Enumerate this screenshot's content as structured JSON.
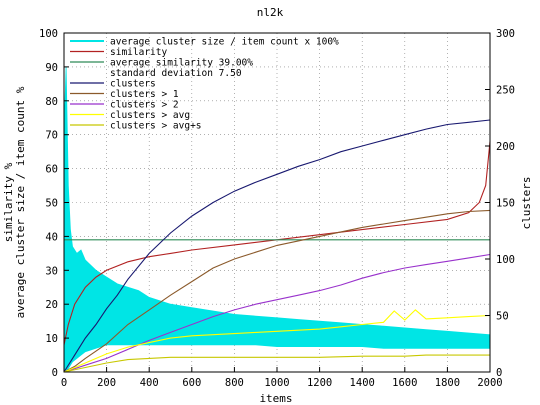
{
  "chart_data": {
    "type": "line",
    "title": "nl2k",
    "xlabel": "items",
    "ylabel_left": "similarity %\naverage cluster size / item count %",
    "ylabel_right": "clusters",
    "xlim": [
      0,
      2000
    ],
    "ylim_left": [
      0,
      100
    ],
    "ylim_right": [
      0,
      300
    ],
    "x_ticks": [
      0,
      200,
      400,
      600,
      800,
      1000,
      1200,
      1400,
      1600,
      1800,
      2000
    ],
    "y_ticks_left": [
      0,
      10,
      20,
      30,
      40,
      50,
      60,
      70,
      80,
      90,
      100
    ],
    "y_ticks_right": [
      0,
      50,
      100,
      150,
      200,
      250,
      300
    ],
    "grid": true,
    "legend_position": "top-left",
    "series": [
      {
        "name": "average cluster size / item count x 100%",
        "axis": "left",
        "color": "#00e5e5",
        "style": "area",
        "x": [
          0,
          10,
          20,
          30,
          40,
          60,
          80,
          100,
          150,
          200,
          250,
          300,
          350,
          400,
          500,
          600,
          700,
          800,
          900,
          1000,
          1100,
          1200,
          1300,
          1400,
          1500,
          1600,
          1700,
          1800,
          1900,
          2000
        ],
        "upper": [
          70,
          90,
          55,
          42,
          37,
          35,
          36,
          33,
          30,
          28,
          26,
          25,
          24,
          22,
          20,
          19,
          18,
          17,
          16.5,
          16,
          15.5,
          15,
          14.5,
          14,
          13.5,
          13,
          12.5,
          12,
          11.5,
          11
        ],
        "lower": [
          0,
          0,
          1,
          2,
          3,
          4,
          5,
          6,
          7,
          8,
          8,
          8,
          8,
          8,
          8,
          8,
          8,
          8,
          8,
          7.5,
          7.5,
          7.5,
          7.5,
          7.5,
          7,
          7,
          7,
          7,
          7,
          7
        ]
      },
      {
        "name": "similarity",
        "axis": "left",
        "color": "#b22222",
        "x": [
          0,
          20,
          50,
          100,
          150,
          200,
          300,
          400,
          500,
          600,
          800,
          1000,
          1200,
          1400,
          1600,
          1800,
          1900,
          1950,
          1980,
          2000
        ],
        "y": [
          8,
          14,
          20,
          25,
          28,
          30,
          32.5,
          34,
          35,
          36,
          37.5,
          39,
          40.5,
          42,
          43.5,
          45,
          47,
          50,
          55,
          68
        ]
      },
      {
        "name": "average similarity 39.00%",
        "axis": "left",
        "color": "#2e8b57",
        "x": [
          0,
          2000
        ],
        "y": [
          39,
          39
        ]
      },
      {
        "name": "standard deviation 7.50",
        "axis": "left",
        "color": "none",
        "x": [],
        "y": []
      },
      {
        "name": "clusters",
        "axis": "right",
        "color": "#191970",
        "x": [
          0,
          50,
          100,
          150,
          200,
          250,
          300,
          400,
          500,
          600,
          700,
          800,
          900,
          1000,
          1100,
          1200,
          1300,
          1400,
          1500,
          1600,
          1700,
          1800,
          1900,
          2000
        ],
        "y": [
          0,
          15,
          30,
          42,
          56,
          68,
          82,
          105,
          123,
          138,
          150,
          160,
          168,
          175,
          182,
          188,
          195,
          200,
          205,
          210,
          215,
          219,
          221,
          223
        ]
      },
      {
        "name": "clusters > 1",
        "axis": "right",
        "color": "#8b5a2b",
        "x": [
          0,
          50,
          100,
          200,
          300,
          400,
          500,
          600,
          700,
          800,
          900,
          1000,
          1100,
          1200,
          1300,
          1400,
          1500,
          1600,
          1700,
          1800,
          1900,
          2000
        ],
        "y": [
          0,
          5,
          12,
          25,
          42,
          55,
          68,
          80,
          92,
          100,
          106,
          112,
          116,
          120,
          124,
          128,
          131,
          134,
          137,
          140,
          142,
          143
        ]
      },
      {
        "name": "clusters > 2",
        "axis": "right",
        "color": "#9932cc",
        "x": [
          0,
          50,
          100,
          200,
          300,
          400,
          500,
          600,
          700,
          800,
          900,
          1000,
          1100,
          1200,
          1300,
          1400,
          1500,
          1600,
          1700,
          1800,
          1900,
          2000
        ],
        "y": [
          0,
          3,
          6,
          12,
          20,
          28,
          35,
          42,
          49,
          55,
          60,
          64,
          68,
          72,
          77,
          83,
          88,
          92,
          95,
          98,
          101,
          104
        ]
      },
      {
        "name": "clusters > avg",
        "axis": "right",
        "color": "#ffff00",
        "x": [
          0,
          100,
          200,
          300,
          400,
          500,
          600,
          700,
          800,
          900,
          1000,
          1100,
          1200,
          1300,
          1400,
          1500,
          1550,
          1600,
          1650,
          1700,
          1800,
          1900,
          2000
        ],
        "y": [
          0,
          8,
          16,
          22,
          26,
          30,
          32,
          33,
          34,
          35,
          36,
          37,
          38,
          40,
          42,
          44,
          54,
          46,
          55,
          47,
          48,
          49,
          50
        ]
      },
      {
        "name": "clusters > avg+s",
        "axis": "right",
        "color": "#c8c800",
        "x": [
          0,
          100,
          200,
          300,
          400,
          500,
          600,
          800,
          1000,
          1200,
          1400,
          1600,
          1700,
          1800,
          1900,
          2000
        ],
        "y": [
          0,
          4,
          8,
          11,
          12,
          13,
          13,
          13,
          13,
          13,
          14,
          14,
          15,
          15,
          15,
          15
        ]
      }
    ]
  }
}
